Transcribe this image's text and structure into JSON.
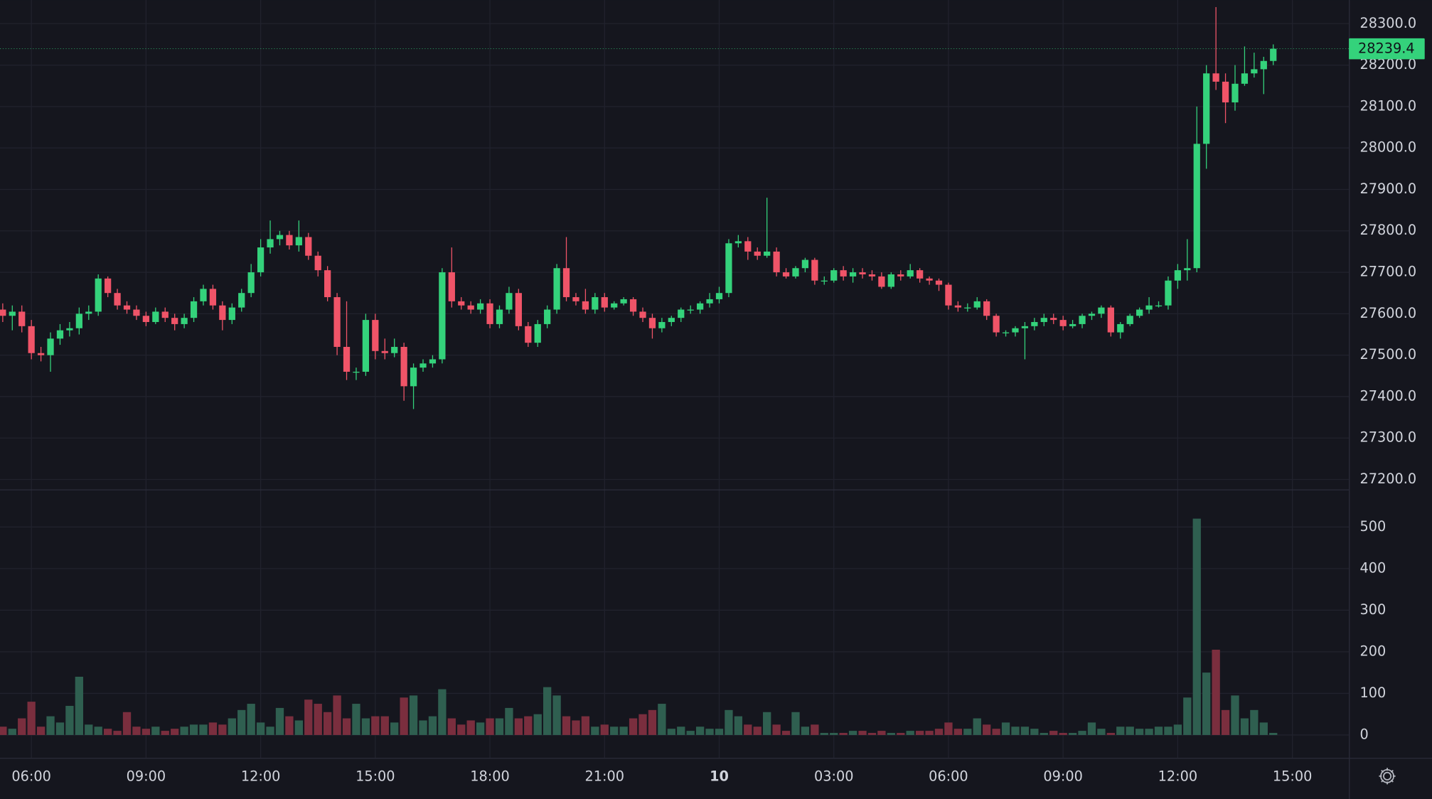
{
  "chart_data": {
    "type": "candlestick",
    "x": [
      "05:15",
      "05:30",
      "05:45",
      "06:00",
      "06:15",
      "06:30",
      "06:45",
      "07:00",
      "07:15",
      "07:30",
      "07:45",
      "08:00",
      "08:15",
      "08:30",
      "08:45",
      "09:00",
      "09:15",
      "09:30",
      "09:45",
      "10:00",
      "10:15",
      "10:30",
      "10:45",
      "11:00",
      "11:15",
      "11:30",
      "11:45",
      "12:00",
      "12:15",
      "12:30",
      "12:45",
      "13:00",
      "13:15",
      "13:30",
      "13:45",
      "14:00",
      "14:15",
      "14:30",
      "14:45",
      "15:00",
      "15:15",
      "15:30",
      "15:45",
      "16:00",
      "16:15",
      "16:30",
      "16:45",
      "17:00",
      "17:15",
      "17:30",
      "17:45",
      "18:00",
      "18:15",
      "18:30",
      "18:45",
      "19:00",
      "19:15",
      "19:30",
      "19:45",
      "20:00",
      "20:15",
      "20:30",
      "20:45",
      "21:00",
      "21:15",
      "21:30",
      "21:45",
      "22:00",
      "22:15",
      "22:30",
      "22:45",
      "23:00",
      "23:15",
      "23:30",
      "23:45",
      "10",
      "00:15",
      "00:30",
      "00:45",
      "01:00",
      "01:15",
      "01:30",
      "01:45",
      "02:00",
      "02:15",
      "02:30",
      "02:45",
      "03:00",
      "03:15",
      "03:30",
      "03:45",
      "04:00",
      "04:15",
      "04:30",
      "04:45",
      "05:00",
      "05:15",
      "05:30",
      "05:45",
      "06:00",
      "06:15",
      "06:30",
      "06:45",
      "07:00",
      "07:15",
      "07:30",
      "07:45",
      "08:00",
      "08:15",
      "08:30",
      "08:45",
      "09:00",
      "09:15",
      "09:30",
      "09:45",
      "10:00",
      "10:15",
      "10:30",
      "10:45",
      "11:00",
      "11:15",
      "11:30",
      "11:45",
      "12:00",
      "12:15",
      "12:30",
      "12:45",
      "13:00",
      "13:15",
      "13:30",
      "13:45",
      "14:00",
      "14:15",
      "14:30",
      "14:45",
      "15:00"
    ],
    "open": [
      27610,
      27595,
      27605,
      27570,
      27505,
      27500,
      27540,
      27560,
      27565,
      27600,
      27605,
      27685,
      27650,
      27620,
      27610,
      27595,
      27580,
      27605,
      27590,
      27575,
      27590,
      27630,
      27660,
      27620,
      27585,
      27615,
      27650,
      27700,
      27760,
      27780,
      27790,
      27765,
      27785,
      27740,
      27705,
      27640,
      27520,
      27460,
      27460,
      27585,
      27510,
      27505,
      27520,
      27425,
      27470,
      27480,
      27490,
      27700,
      27630,
      27620,
      27610,
      27625,
      27575,
      27610,
      27650,
      27570,
      27530,
      27575,
      27610,
      27710,
      27640,
      27630,
      27610,
      27640,
      27615,
      27625,
      27635,
      27605,
      27590,
      27565,
      27580,
      27590,
      27610,
      27610,
      27625,
      27635,
      27650,
      27770,
      27775,
      27750,
      27740,
      27750,
      27700,
      27690,
      27710,
      27730,
      27680,
      27680,
      27705,
      27690,
      27700,
      27695,
      27690,
      27665,
      27695,
      27690,
      27705,
      27685,
      27680,
      27670,
      27620,
      27615,
      27615,
      27630,
      27595,
      27555,
      27555,
      27565,
      27570,
      27580,
      27590,
      27585,
      27570,
      27575,
      27595,
      27600,
      27615,
      27555,
      27575,
      27595,
      27610,
      27620,
      27620,
      27680,
      27705,
      27710,
      28010,
      28180,
      28160,
      28110,
      28155,
      28180,
      28190,
      28210,
      null,
      null
    ],
    "high": [
      27625,
      27620,
      27620,
      27585,
      27520,
      27555,
      27575,
      27580,
      27615,
      27620,
      27695,
      27690,
      27660,
      27630,
      27620,
      27605,
      27615,
      27615,
      27600,
      27600,
      27640,
      27670,
      27670,
      27630,
      27625,
      27660,
      27720,
      27780,
      27825,
      27800,
      27800,
      27825,
      27795,
      27750,
      27715,
      27650,
      27630,
      27470,
      27600,
      27600,
      27540,
      27540,
      27530,
      27480,
      27490,
      27500,
      27710,
      27760,
      27640,
      27630,
      27635,
      27635,
      27620,
      27665,
      27660,
      27580,
      27585,
      27620,
      27720,
      27785,
      27650,
      27660,
      27650,
      27650,
      27630,
      27640,
      27640,
      27615,
      27600,
      27590,
      27595,
      27615,
      27620,
      27630,
      27650,
      27665,
      27780,
      27790,
      27785,
      27760,
      27880,
      27760,
      27710,
      27715,
      27735,
      27735,
      27690,
      27710,
      27715,
      27710,
      27710,
      27705,
      27700,
      27700,
      27705,
      27720,
      27710,
      27690,
      27685,
      27675,
      27630,
      27625,
      27640,
      27635,
      27600,
      27560,
      27570,
      27580,
      27590,
      27600,
      27600,
      27595,
      27585,
      27600,
      27605,
      27620,
      27620,
      27580,
      27600,
      27615,
      27640,
      27630,
      27690,
      27720,
      27780,
      28100,
      28200,
      28340,
      28180,
      28200,
      28245,
      28230,
      28220,
      28250,
      null,
      null
    ],
    "low": [
      27580,
      27560,
      27555,
      27490,
      27485,
      27460,
      27525,
      27545,
      27550,
      27585,
      27595,
      27640,
      27610,
      27600,
      27585,
      27570,
      27575,
      27580,
      27560,
      27565,
      27580,
      27620,
      27610,
      27560,
      27575,
      27605,
      27640,
      27690,
      27745,
      27765,
      27755,
      27750,
      27730,
      27690,
      27630,
      27500,
      27440,
      27440,
      27450,
      27490,
      27490,
      27495,
      27390,
      27370,
      27460,
      27470,
      27480,
      27615,
      27610,
      27600,
      27600,
      27565,
      27565,
      27600,
      27560,
      27520,
      27520,
      27565,
      27600,
      27630,
      27620,
      27600,
      27600,
      27605,
      27610,
      27620,
      27595,
      27580,
      27540,
      27555,
      27570,
      27580,
      27600,
      27600,
      27615,
      27625,
      27640,
      27760,
      27730,
      27730,
      27735,
      27690,
      27685,
      27685,
      27700,
      27670,
      27670,
      27675,
      27680,
      27675,
      27685,
      27680,
      27660,
      27660,
      27680,
      27685,
      27675,
      27670,
      27655,
      27610,
      27605,
      27605,
      27610,
      27585,
      27545,
      27545,
      27545,
      27490,
      27560,
      27570,
      27575,
      27560,
      27565,
      27565,
      27585,
      27590,
      27545,
      27540,
      27570,
      27590,
      27600,
      27615,
      27610,
      27660,
      27680,
      27700,
      27950,
      28140,
      28060,
      28090,
      28150,
      28170,
      28130,
      28200,
      null,
      null
    ],
    "close": [
      27595,
      27605,
      27570,
      27505,
      27500,
      27540,
      27560,
      27565,
      27600,
      27605,
      27685,
      27650,
      27620,
      27610,
      27595,
      27580,
      27605,
      27590,
      27575,
      27590,
      27630,
      27660,
      27620,
      27585,
      27615,
      27650,
      27700,
      27760,
      27780,
      27790,
      27765,
      27785,
      27740,
      27705,
      27640,
      27520,
      27460,
      27460,
      27585,
      27510,
      27505,
      27520,
      27425,
      27470,
      27480,
      27490,
      27700,
      27630,
      27620,
      27610,
      27625,
      27575,
      27610,
      27650,
      27570,
      27530,
      27575,
      27610,
      27710,
      27640,
      27630,
      27610,
      27640,
      27615,
      27625,
      27635,
      27605,
      27590,
      27565,
      27580,
      27590,
      27610,
      27610,
      27625,
      27635,
      27650,
      27770,
      27775,
      27750,
      27740,
      27750,
      27700,
      27690,
      27710,
      27730,
      27680,
      27680,
      27705,
      27690,
      27700,
      27695,
      27690,
      27665,
      27695,
      27690,
      27705,
      27685,
      27680,
      27670,
      27620,
      27615,
      27615,
      27630,
      27595,
      27555,
      27555,
      27565,
      27570,
      27580,
      27590,
      27585,
      27570,
      27575,
      27595,
      27600,
      27615,
      27555,
      27575,
      27595,
      27610,
      27620,
      27620,
      27680,
      27705,
      27710,
      28010,
      28180,
      28160,
      28110,
      28155,
      28180,
      28190,
      28210,
      28239.4,
      null,
      null
    ],
    "volume": [
      20,
      15,
      40,
      80,
      20,
      45,
      30,
      70,
      140,
      25,
      20,
      15,
      10,
      55,
      20,
      15,
      20,
      10,
      15,
      20,
      25,
      25,
      30,
      25,
      40,
      60,
      75,
      30,
      20,
      65,
      45,
      35,
      85,
      75,
      55,
      95,
      40,
      75,
      40,
      45,
      45,
      30,
      90,
      95,
      35,
      45,
      110,
      40,
      25,
      35,
      30,
      40,
      40,
      65,
      40,
      45,
      50,
      115,
      95,
      45,
      35,
      45,
      20,
      25,
      20,
      20,
      40,
      50,
      60,
      75,
      15,
      20,
      10,
      20,
      15,
      15,
      60,
      45,
      25,
      20,
      55,
      25,
      10,
      55,
      20,
      25,
      5,
      5,
      5,
      10,
      10,
      5,
      10,
      5,
      5,
      10,
      10,
      10,
      15,
      30,
      15,
      15,
      40,
      25,
      15,
      30,
      20,
      20,
      15,
      5,
      10,
      5,
      5,
      10,
      30,
      15,
      5,
      20,
      20,
      15,
      15,
      20,
      20,
      25,
      90,
      520,
      150,
      205,
      60,
      95,
      40,
      60,
      30,
      5,
      null,
      null
    ],
    "xticks": [
      "06:00",
      "09:00",
      "12:00",
      "15:00",
      "18:00",
      "21:00",
      "10",
      "03:00",
      "06:00",
      "09:00",
      "12:00",
      "15:00"
    ],
    "ylim": [
      27176,
      28357
    ],
    "yticks": [
      {
        "value": 27200,
        "label": "27200.0"
      },
      {
        "value": 27300,
        "label": "27300.0"
      },
      {
        "value": 27400,
        "label": "27400.0"
      },
      {
        "value": 27500,
        "label": "27500.0"
      },
      {
        "value": 27600,
        "label": "27600.0"
      },
      {
        "value": 27700,
        "label": "27700.0"
      },
      {
        "value": 27800,
        "label": "27800.0"
      },
      {
        "value": 27900,
        "label": "27900.0"
      },
      {
        "value": 28000,
        "label": "28000.0"
      },
      {
        "value": 28100,
        "label": "28100.0"
      },
      {
        "value": 28200,
        "label": "28200.0"
      },
      {
        "value": 28300,
        "label": "28300.0"
      }
    ],
    "volume_ylim": [
      -55,
      588
    ],
    "volume_ticks": [
      0,
      100,
      200,
      300,
      400,
      500
    ],
    "up_color": "#34d27b",
    "down_color": "#f05468",
    "volume_up_color": "#2f5f50",
    "volume_down_color": "#7a2e3e",
    "grid": true
  }
}
